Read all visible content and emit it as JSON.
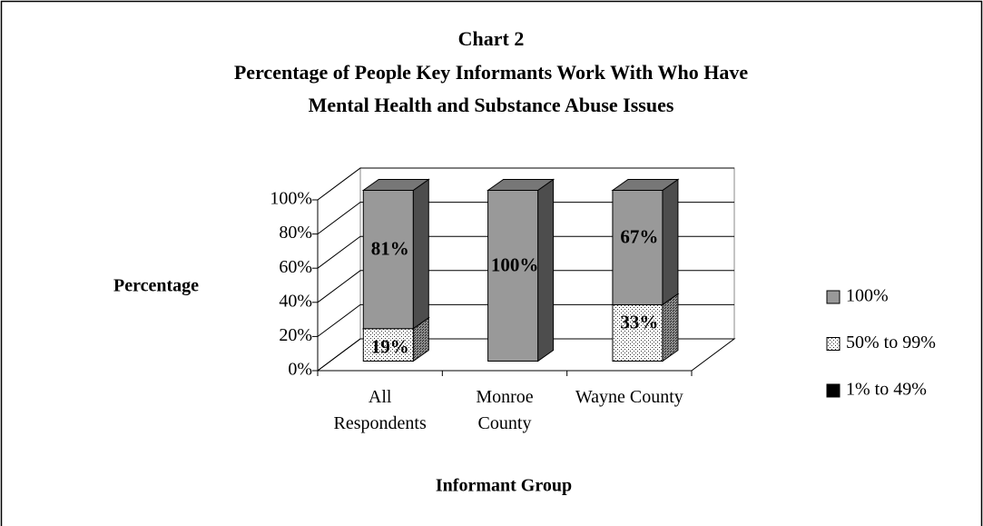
{
  "chart_data": {
    "type": "bar3d_stacked",
    "title": "Chart 2",
    "title_lines": [
      "Percentage of People Key Informants Work With Who Have",
      "Mental Health and Substance Abuse Issues"
    ],
    "xlabel": "Informant Group",
    "ylabel": "Percentage",
    "categories": [
      "All Respondents",
      "Monroe County",
      "Wayne County"
    ],
    "series": [
      {
        "name": "1% to 49%",
        "color": "#000000",
        "values": [
          0,
          0,
          0
        ]
      },
      {
        "name": "50% to 99%",
        "color": "#ffffff",
        "pattern": "dotted",
        "values": [
          19,
          0,
          33
        ],
        "value_labels": [
          "19%",
          null,
          "33%"
        ]
      },
      {
        "name": "100%",
        "color": "#999999",
        "values": [
          81,
          100,
          67
        ],
        "value_labels": [
          "81%",
          "100%",
          "67%"
        ]
      }
    ],
    "ylim": [
      0,
      100
    ],
    "yticks": [
      {
        "value": 0,
        "label": "0%"
      },
      {
        "value": 20,
        "label": "20%"
      },
      {
        "value": 40,
        "label": "40%"
      },
      {
        "value": 60,
        "label": "60%"
      },
      {
        "value": 80,
        "label": "80%"
      },
      {
        "value": 100,
        "label": "100%"
      }
    ],
    "grid": true,
    "legend": "right"
  }
}
